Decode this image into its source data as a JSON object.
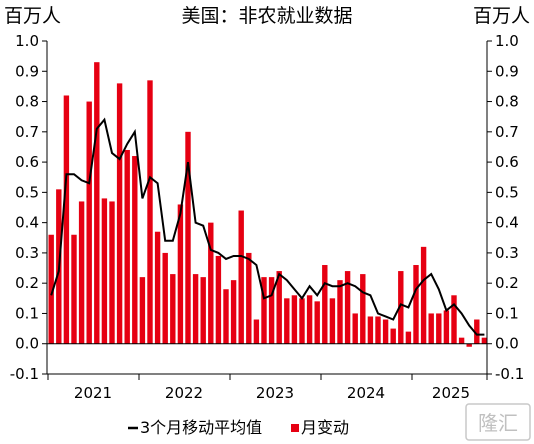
{
  "chart_data": {
    "type": "bar",
    "title": "美国：非农就业数据",
    "left_unit": "百万人",
    "right_unit": "百万人",
    "ylim": [
      -0.1,
      1.0
    ],
    "y_ticks": [
      "-0.1",
      "0.0",
      "0.1",
      "0.2",
      "0.3",
      "0.4",
      "0.5",
      "0.6",
      "0.7",
      "0.8",
      "0.9",
      "1.0"
    ],
    "x_ticks": [
      "2021",
      "2022",
      "2023",
      "2024",
      "2025"
    ],
    "series": [
      {
        "name": "月变动",
        "kind": "bar",
        "color": "#e60012",
        "values": [
          0.36,
          0.51,
          0.82,
          0.36,
          0.47,
          0.8,
          0.93,
          0.48,
          0.47,
          0.86,
          0.64,
          0.62,
          0.22,
          0.87,
          0.37,
          0.3,
          0.23,
          0.46,
          0.7,
          0.23,
          0.22,
          0.4,
          0.29,
          0.18,
          0.21,
          0.44,
          0.3,
          0.08,
          0.22,
          0.22,
          0.24,
          0.15,
          0.16,
          0.15,
          0.16,
          0.14,
          0.26,
          0.15,
          0.21,
          0.24,
          0.1,
          0.23,
          0.09,
          0.09,
          0.08,
          0.05,
          0.24,
          0.04,
          0.26,
          0.32,
          0.1,
          0.1,
          0.11,
          0.16,
          0.02,
          -0.01,
          0.08,
          0.02
        ]
      },
      {
        "name": "3个月移动平均值",
        "kind": "line",
        "color": "#000000",
        "values": [
          0.16,
          0.24,
          0.56,
          0.56,
          0.54,
          0.53,
          0.71,
          0.74,
          0.63,
          0.61,
          0.66,
          0.7,
          0.48,
          0.55,
          0.53,
          0.34,
          0.34,
          0.43,
          0.6,
          0.4,
          0.39,
          0.31,
          0.3,
          0.28,
          0.29,
          0.29,
          0.28,
          0.26,
          0.15,
          0.16,
          0.23,
          0.21,
          0.18,
          0.15,
          0.19,
          0.16,
          0.2,
          0.19,
          0.19,
          0.2,
          0.19,
          0.17,
          0.16,
          0.1,
          0.09,
          0.08,
          0.13,
          0.12,
          0.18,
          0.21,
          0.23,
          0.18,
          0.11,
          0.13,
          0.1,
          0.06,
          0.03,
          0.03
        ]
      }
    ],
    "legend": [
      "3个月移动平均值",
      "月变动"
    ],
    "legend_position": "bottom",
    "grid": false
  },
  "watermark": "格隆汇"
}
